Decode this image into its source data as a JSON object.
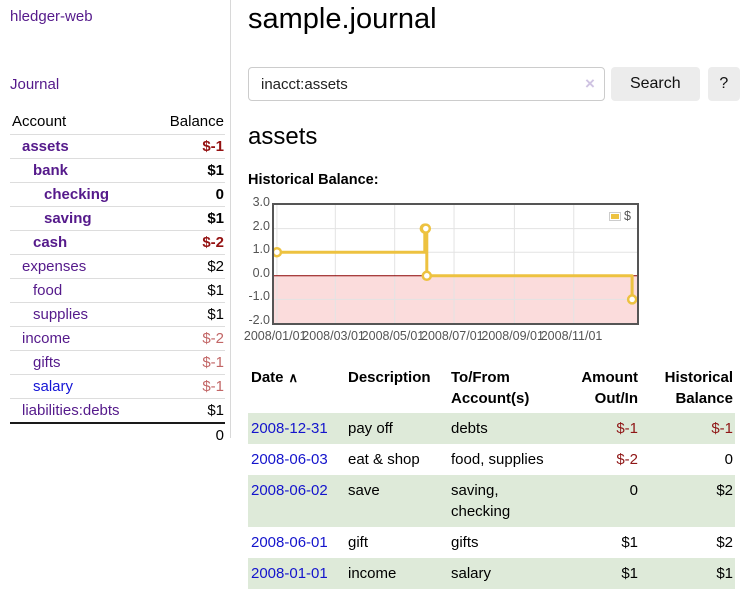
{
  "app": {
    "title": "hledger-web"
  },
  "sidebar": {
    "nav": [
      {
        "label": "Journal"
      }
    ],
    "accounts_table": {
      "headers": {
        "account": "Account",
        "balance": "Balance"
      },
      "rows": [
        {
          "name": "assets",
          "balance": "$-1",
          "level": 1,
          "bold": true,
          "balance_style": "negative",
          "link_style": "visited"
        },
        {
          "name": "bank",
          "balance": "$1",
          "level": 2,
          "bold": true,
          "balance_style": "normal",
          "link_style": "visited"
        },
        {
          "name": "checking",
          "balance": "0",
          "level": 3,
          "bold": true,
          "balance_style": "normal",
          "link_style": "visited"
        },
        {
          "name": "saving",
          "balance": "$1",
          "level": 3,
          "bold": true,
          "balance_style": "normal",
          "link_style": "visited"
        },
        {
          "name": "cash",
          "balance": "$-2",
          "level": 2,
          "bold": true,
          "balance_style": "negative",
          "link_style": "visited"
        },
        {
          "name": "expenses",
          "balance": "$2",
          "level": 1,
          "bold": false,
          "balance_style": "normal",
          "link_style": "visited"
        },
        {
          "name": "food",
          "balance": "$1",
          "level": 2,
          "bold": false,
          "balance_style": "normal",
          "link_style": "visited"
        },
        {
          "name": "supplies",
          "balance": "$1",
          "level": 2,
          "bold": false,
          "balance_style": "normal",
          "link_style": "visited"
        },
        {
          "name": "income",
          "balance": "$-2",
          "level": 1,
          "bold": false,
          "balance_style": "negative-faded",
          "link_style": "visited"
        },
        {
          "name": "gifts",
          "balance": "$-1",
          "level": 2,
          "bold": false,
          "balance_style": "negative-faded",
          "link_style": "visited"
        },
        {
          "name": "salary",
          "balance": "$-1",
          "level": 2,
          "bold": false,
          "balance_style": "negative-faded",
          "link_style": "unvisited"
        },
        {
          "name": "liabilities:debts",
          "balance": "$1",
          "level": 1,
          "bold": false,
          "balance_style": "normal",
          "link_style": "visited"
        }
      ],
      "total": "0"
    }
  },
  "header": {
    "title": "sample.journal"
  },
  "search": {
    "value": "inacct:assets",
    "clear_icon": "×",
    "button_label": "Search",
    "help_label": "?"
  },
  "account_page": {
    "title": "assets",
    "chart_label": "Historical Balance:"
  },
  "chart_data": {
    "type": "line",
    "style": "step-after",
    "title": "Historical Balance",
    "series": [
      {
        "name": "$",
        "color": "#edc240",
        "points": [
          [
            "2008-01-01",
            1
          ],
          [
            "2008-06-01",
            2
          ],
          [
            "2008-06-02",
            2
          ],
          [
            "2008-06-03",
            0
          ],
          [
            "2008-12-31",
            -1
          ]
        ]
      }
    ],
    "x_ticks": [
      {
        "date": "2008-01-01",
        "label": "2008/01/01"
      },
      {
        "date": "2008-03-01",
        "label": "2008/03/01"
      },
      {
        "date": "2008-05-01",
        "label": "2008/05/01"
      },
      {
        "date": "2008-07-01",
        "label": "2008/07/01"
      },
      {
        "date": "2008-09-01",
        "label": "2008/09/01"
      },
      {
        "date": "2008-11-01",
        "label": "2008/11/01"
      }
    ],
    "y_ticks": [
      3.0,
      2.0,
      1.0,
      0.0,
      -1.0,
      -2.0
    ],
    "ylim": [
      -2,
      3
    ],
    "xlim": [
      "2007-12-29",
      "2009-01-05"
    ],
    "grid": true,
    "legend_position": "top-right",
    "negative_region_color": "#fbdcdc",
    "zero_line_color": "#8b0000"
  },
  "register_table": {
    "headers": {
      "date": "Date",
      "sort_indicator": "∧",
      "description": "Description",
      "tofrom": "To/From Account(s)",
      "amount": "Amount Out/In",
      "balance": "Historical Balance"
    },
    "rows": [
      {
        "date": "2008-12-31",
        "description": "pay off",
        "accounts": "debts",
        "amount": "$-1",
        "balance": "$-1"
      },
      {
        "date": "2008-06-03",
        "description": "eat & shop",
        "accounts": "food, supplies",
        "amount": "$-2",
        "balance": "0"
      },
      {
        "date": "2008-06-02",
        "description": "save",
        "accounts": "saving, checking",
        "amount": "0",
        "balance": "$2"
      },
      {
        "date": "2008-06-01",
        "description": "gift",
        "accounts": "gifts",
        "amount": "$1",
        "balance": "$2"
      },
      {
        "date": "2008-01-01",
        "description": "income",
        "accounts": "salary",
        "amount": "$1",
        "balance": "$1"
      }
    ]
  }
}
